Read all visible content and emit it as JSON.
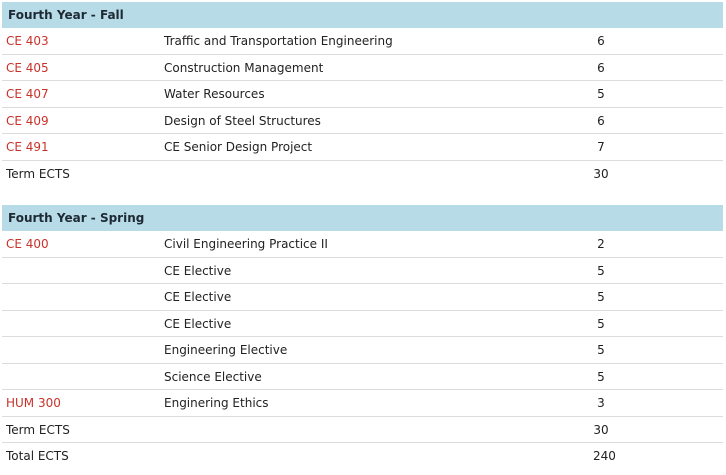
{
  "colors": {
    "header_bg": "#b8dbe8",
    "code_text": "#c8332b",
    "divider": "#dcdcdc"
  },
  "fall": {
    "title": "Fourth Year - Fall",
    "rows": [
      {
        "code": "CE 403",
        "name": "Traffic and Transportation Engineering",
        "ects": "6"
      },
      {
        "code": "CE 405",
        "name": "Construction Management",
        "ects": "6"
      },
      {
        "code": "CE 407",
        "name": "Water Resources",
        "ects": "5"
      },
      {
        "code": "CE 409",
        "name": "Design of Steel Structures",
        "ects": "6"
      },
      {
        "code": "CE 491",
        "name": "CE Senior Design Project",
        "ects": "7"
      }
    ],
    "term": {
      "label": "Term ECTS",
      "ects": "30"
    }
  },
  "spring": {
    "title": "Fourth Year - Spring",
    "rows": [
      {
        "code": "CE 400",
        "name": "Civil Engineering Practice II",
        "ects": "2"
      },
      {
        "code": "",
        "name": "CE Elective",
        "ects": "5"
      },
      {
        "code": "",
        "name": "CE Elective",
        "ects": "5"
      },
      {
        "code": "",
        "name": "CE Elective",
        "ects": "5"
      },
      {
        "code": "",
        "name": "Engineering Elective",
        "ects": "5"
      },
      {
        "code": "",
        "name": "Science Elective",
        "ects": "5"
      },
      {
        "code": "HUM 300",
        "name": "Enginering Ethics",
        "ects": "3"
      }
    ],
    "term": {
      "label": "Term ECTS",
      "ects": "30"
    },
    "total": {
      "label": "Total ECTS",
      "ects": "240"
    }
  }
}
